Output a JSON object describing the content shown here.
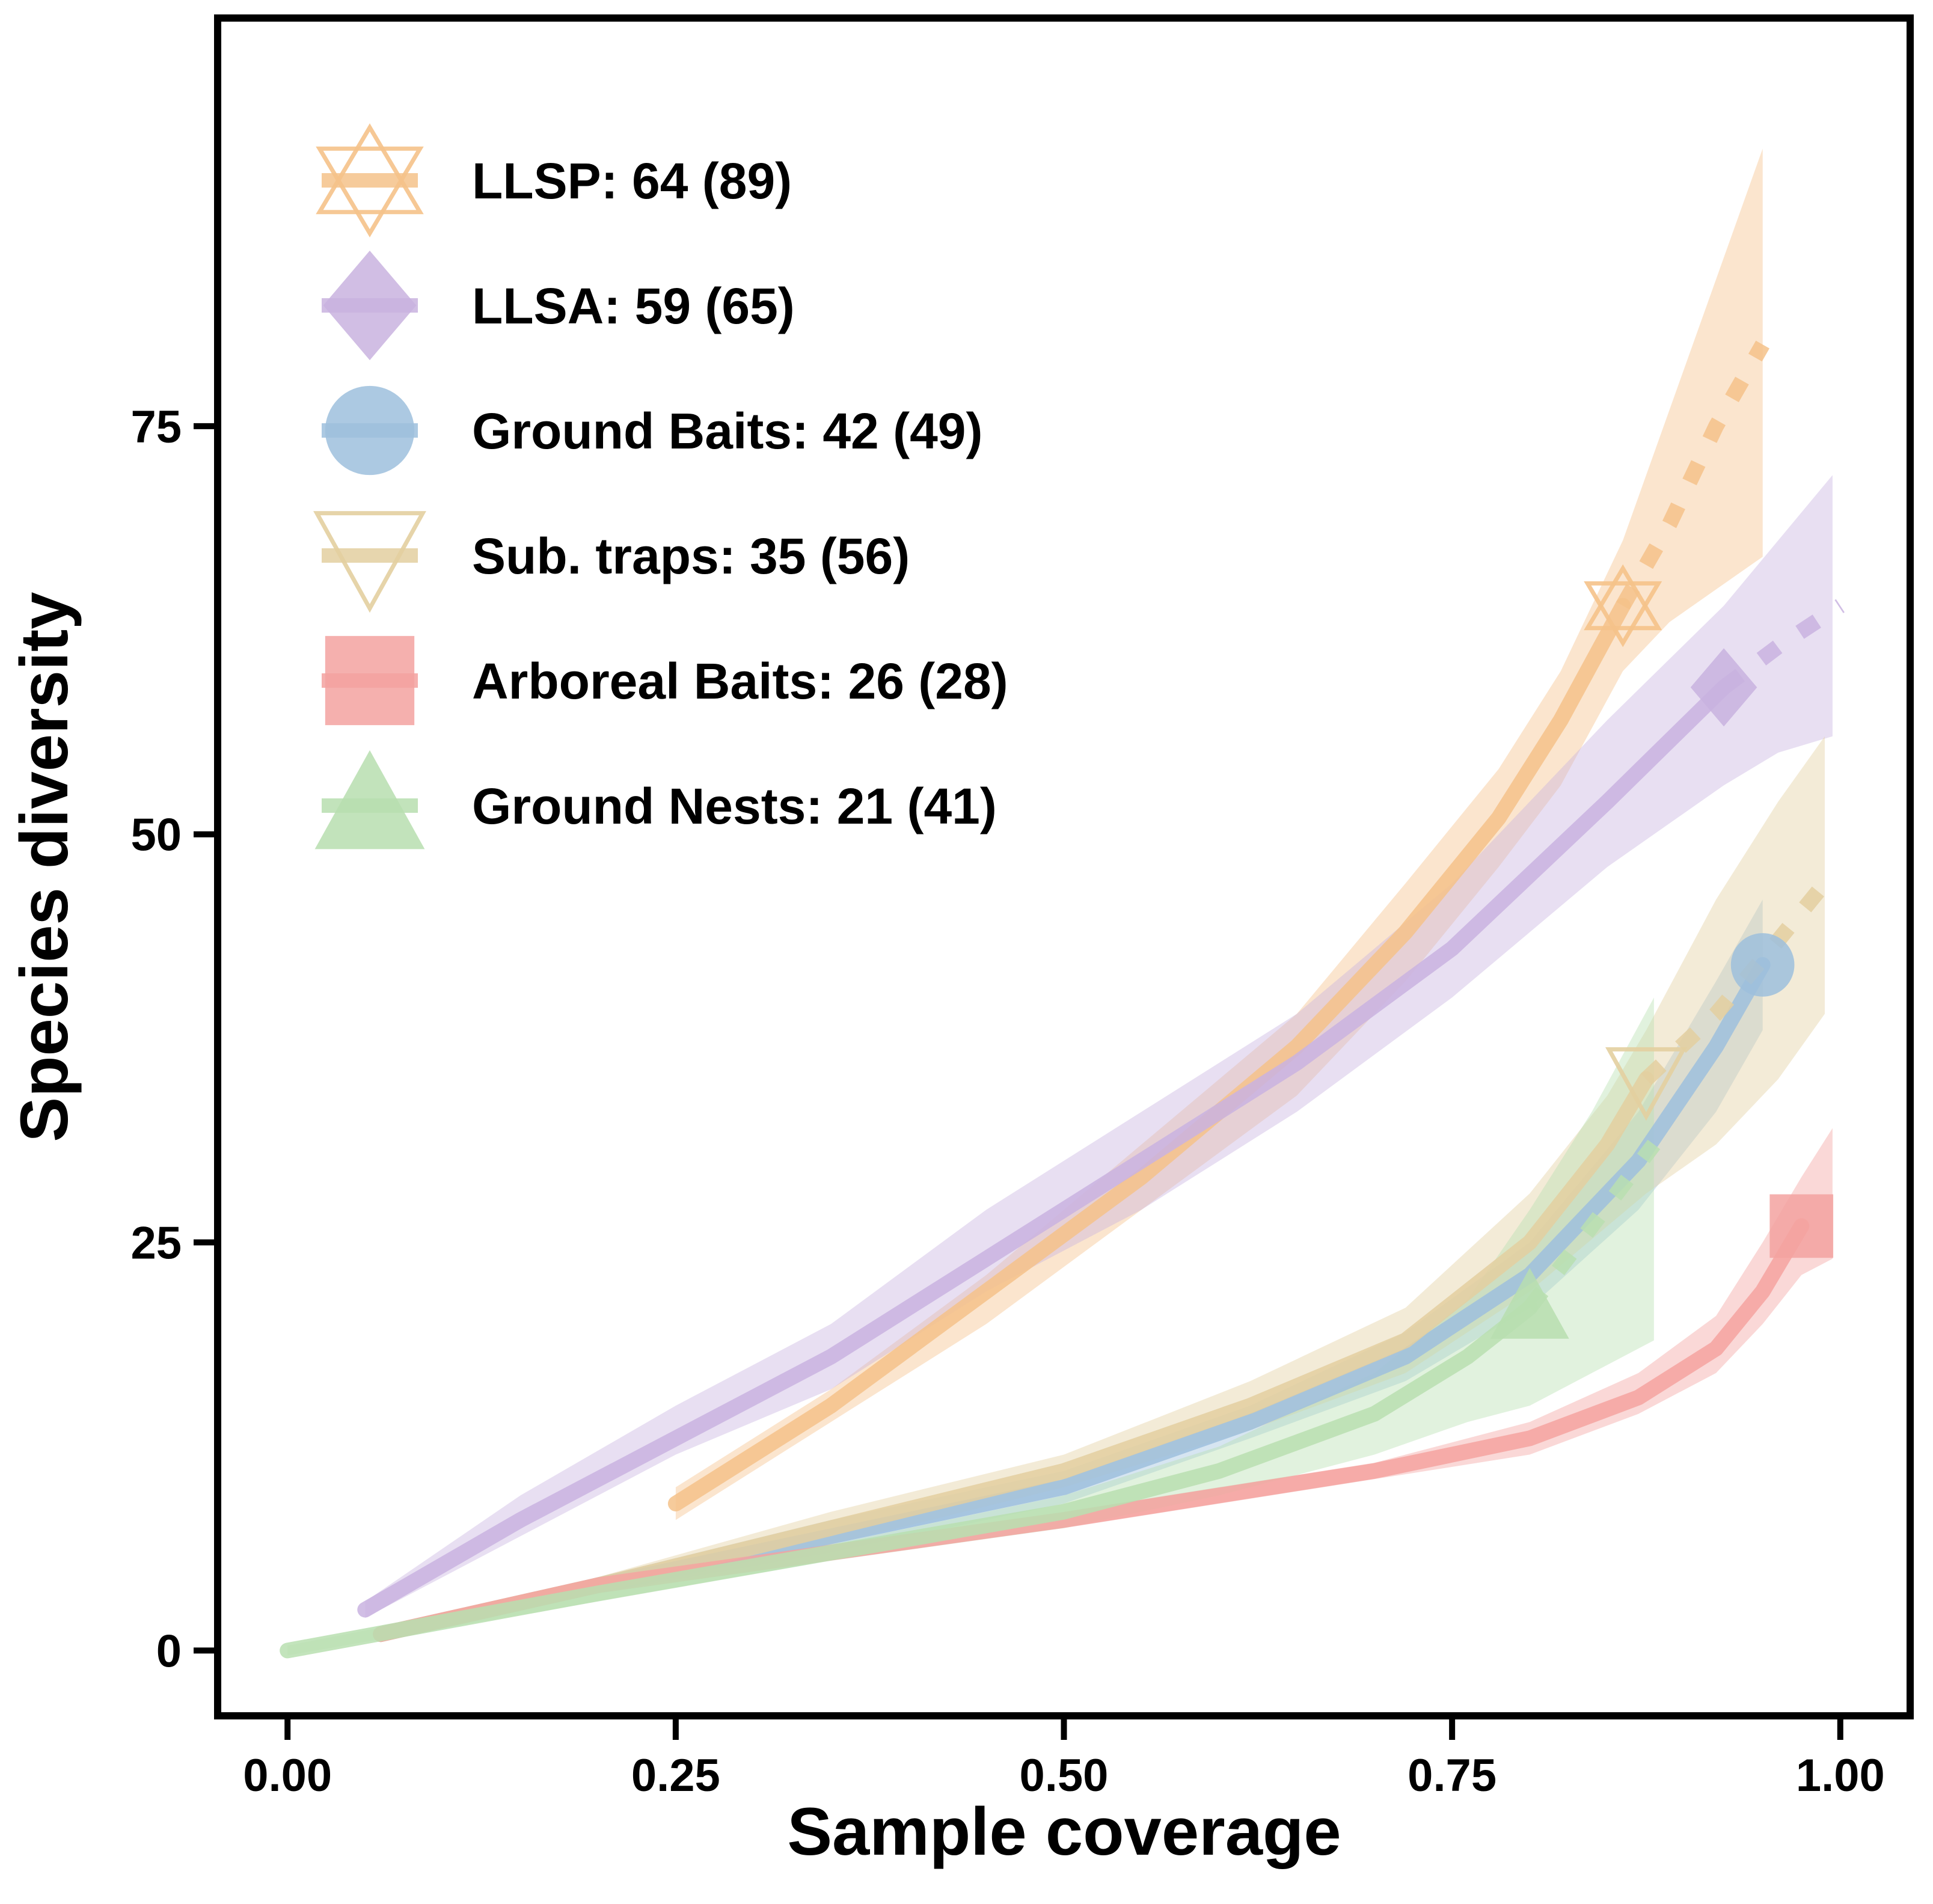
{
  "chart_data": {
    "type": "line",
    "xlabel": "Sample coverage",
    "ylabel": "Species diversity",
    "xlim": [
      -0.045,
      1.045
    ],
    "ylim": [
      -4.0,
      100.0
    ],
    "xticks": [
      0.0,
      0.25,
      0.5,
      0.75,
      1.0
    ],
    "xtick_labels": [
      "0.00",
      "0.25",
      "0.50",
      "0.75",
      "1.00"
    ],
    "yticks": [
      0,
      25,
      50,
      75
    ],
    "ytick_labels": [
      "0",
      "25",
      "50",
      "75"
    ],
    "grid": false,
    "legend_position": "top-left",
    "series": [
      {
        "name": "LLSP: 64 (89)",
        "color": "#f5c28a",
        "marker": "hexagram",
        "observed": {
          "x": 0.86,
          "y": 64
        },
        "interpolated": {
          "x": [
            0.25,
            0.35,
            0.45,
            0.55,
            0.65,
            0.72,
            0.78,
            0.82,
            0.86
          ],
          "y": [
            9,
            15,
            22,
            29,
            37,
            44,
            51,
            57,
            64
          ]
        },
        "extrapolated": {
          "x": [
            0.86,
            0.89,
            0.92,
            0.95
          ],
          "y": [
            64,
            69,
            75,
            80
          ]
        },
        "ci": {
          "x": [
            0.25,
            0.35,
            0.45,
            0.55,
            0.65,
            0.72,
            0.78,
            0.82,
            0.86,
            0.89,
            0.92,
            0.95
          ],
          "lower": [
            8,
            14,
            20,
            27,
            34,
            41,
            48,
            53,
            60,
            63,
            65,
            67
          ],
          "upper": [
            10,
            16,
            23,
            31,
            39,
            47,
            54,
            60,
            68,
            76,
            84,
            92
          ]
        }
      },
      {
        "name": "LLSA: 59 (65)",
        "color": "#c9b3e0",
        "marker": "diamond",
        "observed": {
          "x": 0.925,
          "y": 59
        },
        "interpolated": {
          "x": [
            0.05,
            0.15,
            0.25,
            0.35,
            0.45,
            0.55,
            0.65,
            0.75,
            0.85,
            0.925
          ],
          "y": [
            2.5,
            8,
            13,
            18,
            24,
            30,
            36,
            43,
            52,
            59
          ]
        },
        "extrapolated": {
          "x": [
            0.925,
            0.96,
            1.0
          ],
          "y": [
            59,
            61.5,
            64
          ]
        },
        "ci": {
          "x": [
            0.05,
            0.15,
            0.25,
            0.35,
            0.45,
            0.55,
            0.65,
            0.75,
            0.85,
            0.925,
            0.96,
            0.995
          ],
          "lower": [
            2,
            7,
            12,
            16,
            22,
            27,
            33,
            40,
            48,
            53,
            55,
            56
          ],
          "upper": [
            3,
            9.5,
            15,
            20,
            27,
            33,
            39,
            47,
            57,
            64,
            68,
            72
          ]
        }
      },
      {
        "name": "Ground Baits: 42 (49)",
        "color": "#9ec0dd",
        "marker": "circle",
        "observed": {
          "x": 0.95,
          "y": 42
        },
        "interpolated": {
          "x": [
            0.06,
            0.2,
            0.35,
            0.5,
            0.62,
            0.72,
            0.8,
            0.87,
            0.92,
            0.95
          ],
          "y": [
            1,
            4,
            7,
            10,
            14,
            18,
            23,
            30,
            37,
            42
          ]
        },
        "ci": {
          "x": [
            0.06,
            0.2,
            0.35,
            0.5,
            0.62,
            0.72,
            0.8,
            0.87,
            0.92,
            0.95
          ],
          "lower": [
            0.8,
            3.5,
            6,
            9,
            13,
            16.5,
            21,
            27,
            33,
            38
          ],
          "upper": [
            1.2,
            4.5,
            8,
            11,
            15,
            19.5,
            25,
            33,
            41,
            46
          ]
        }
      },
      {
        "name": "Sub. traps: 35 (56)",
        "color": "#e3cfa0",
        "marker": "triangle-down",
        "observed": {
          "x": 0.875,
          "y": 35
        },
        "interpolated": {
          "x": [
            0.06,
            0.2,
            0.35,
            0.5,
            0.62,
            0.72,
            0.8,
            0.85,
            0.875
          ],
          "y": [
            1,
            4,
            7.5,
            11,
            15,
            19,
            25,
            31,
            35
          ]
        },
        "extrapolated": {
          "x": [
            0.875,
            0.92,
            0.96,
            0.99
          ],
          "y": [
            35,
            39,
            43.5,
            47
          ]
        },
        "ci": {
          "x": [
            0.06,
            0.2,
            0.35,
            0.5,
            0.62,
            0.72,
            0.8,
            0.85,
            0.875,
            0.92,
            0.96,
            0.99
          ],
          "lower": [
            0.8,
            3.5,
            6.5,
            10,
            13.5,
            17,
            22,
            26,
            28,
            31,
            35,
            39
          ],
          "upper": [
            1.2,
            4.5,
            8.5,
            12,
            16.5,
            21,
            28,
            34,
            38,
            46,
            52,
            56
          ]
        }
      },
      {
        "name": "Arboreal Baits: 26 (28)",
        "color": "#f4a3a0",
        "marker": "square",
        "observed": {
          "x": 0.975,
          "y": 26
        },
        "interpolated": {
          "x": [
            0.06,
            0.2,
            0.35,
            0.5,
            0.6,
            0.7,
            0.8,
            0.87,
            0.92,
            0.95,
            0.975
          ],
          "y": [
            1,
            4,
            6,
            8,
            9.5,
            11,
            13,
            15.5,
            18.5,
            22,
            26
          ]
        },
        "ci": {
          "x": [
            0.06,
            0.2,
            0.35,
            0.5,
            0.6,
            0.7,
            0.8,
            0.87,
            0.92,
            0.95,
            0.975,
            0.995
          ],
          "lower": [
            0.8,
            3.5,
            5.5,
            7.5,
            9,
            10.5,
            12,
            14.5,
            17,
            20,
            23,
            24
          ],
          "upper": [
            1.2,
            4.5,
            6.5,
            8.5,
            10,
            11.5,
            14,
            17,
            20.5,
            25,
            29,
            32
          ]
        }
      },
      {
        "name": "Ground Nests: 21 (41)",
        "color": "#b8dfb0",
        "marker": "triangle-up",
        "observed": {
          "x": 0.8,
          "y": 21
        },
        "interpolated": {
          "x": [
            0.0,
            0.2,
            0.35,
            0.5,
            0.6,
            0.7,
            0.76,
            0.8
          ],
          "y": [
            0,
            3.5,
            6,
            8.5,
            11,
            14.5,
            18,
            21
          ]
        },
        "extrapolated": {
          "x": [
            0.8,
            0.84,
            0.88
          ],
          "y": [
            21,
            26,
            31
          ]
        },
        "ci": {
          "x": [
            0.0,
            0.2,
            0.35,
            0.5,
            0.6,
            0.7,
            0.76,
            0.8,
            0.84,
            0.88
          ],
          "lower": [
            -0.3,
            3,
            5.5,
            7.5,
            9.5,
            12,
            14,
            15,
            17,
            19
          ],
          "upper": [
            0.3,
            4,
            6.5,
            9.5,
            12.5,
            17,
            21.5,
            27,
            33,
            40
          ]
        }
      }
    ]
  }
}
